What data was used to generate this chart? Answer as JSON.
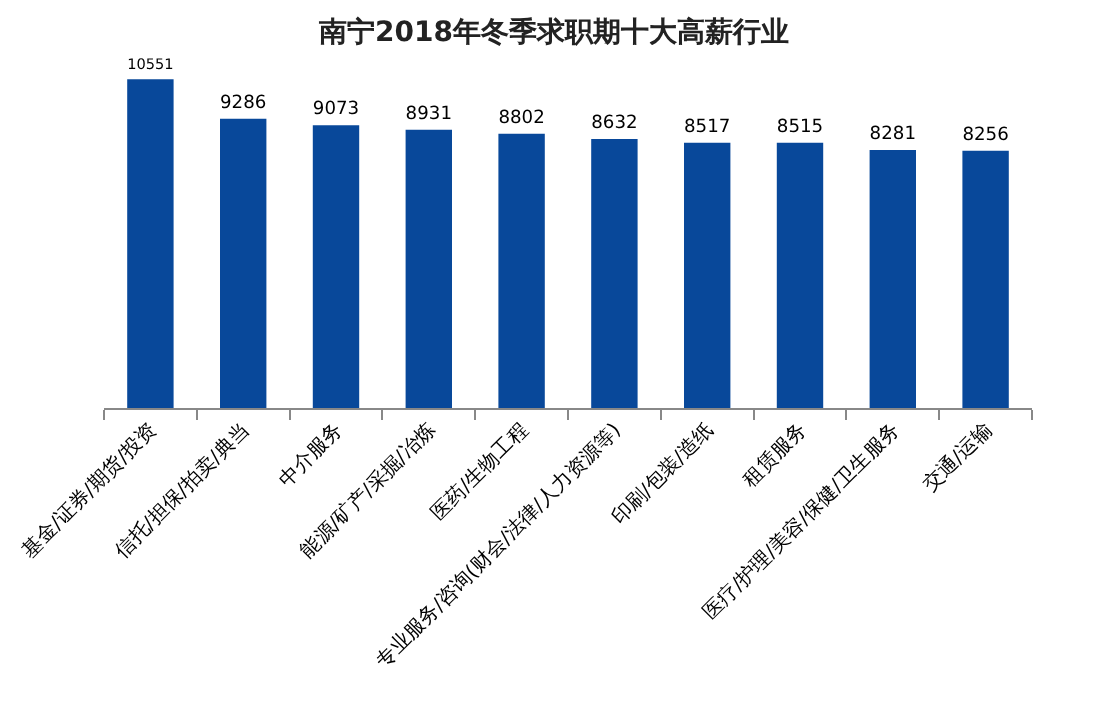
{
  "chart_data": {
    "type": "bar",
    "title": "南宁2018年冬季求职期十大高薪行业",
    "categories": [
      "基金/证券/期货/投资",
      "信托/担保/拍卖/典当",
      "中介服务",
      "能源/矿产/采掘/冶炼",
      "医药/生物工程",
      "专业服务/咨询(财会/法律/人力资源等)",
      "印刷/包装/造纸",
      "租赁服务",
      "医疗/护理/美容/保健/卫生服务",
      "交通/运输"
    ],
    "values": [
      10551,
      9286,
      9073,
      8931,
      8802,
      8632,
      8517,
      8515,
      8281,
      8256
    ],
    "color": "#08489a",
    "tick_labels": "x",
    "data_labels": true
  }
}
